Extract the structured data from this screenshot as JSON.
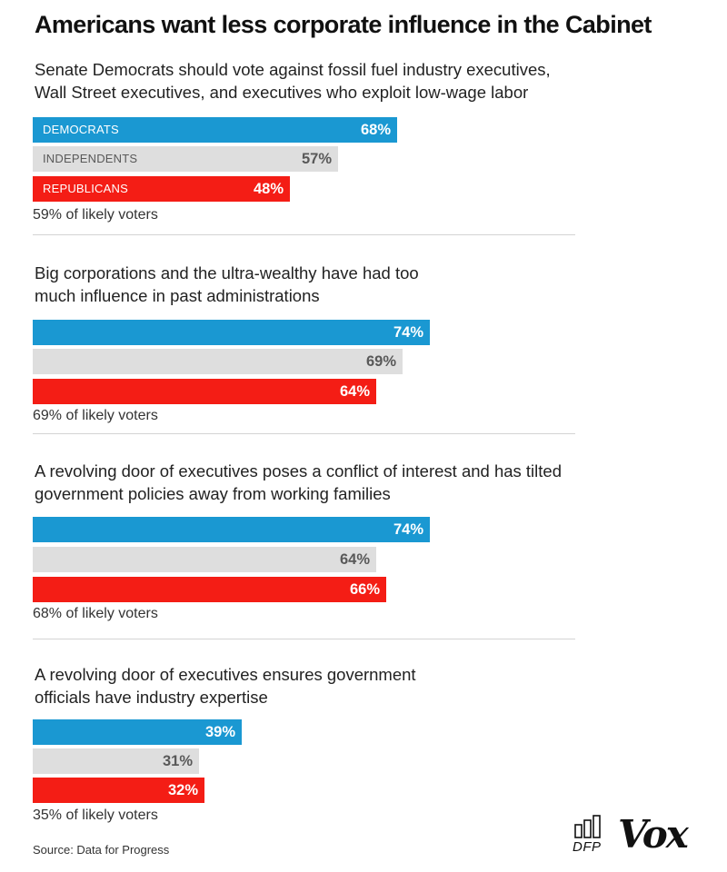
{
  "title": "Americans want less corporate influence in the Cabinet",
  "chart_data": {
    "type": "bar",
    "orientation": "horizontal",
    "xlim": [
      0,
      100
    ],
    "series_labels": {
      "democrats": "DEMOCRATS",
      "independents": "INDEPENDENTS",
      "republicans": "REPUBLICANS"
    },
    "colors": {
      "democrats": "#1a98d2",
      "independents": "#dedede",
      "republicans": "#f41d15"
    },
    "panels": [
      {
        "question": "Senate Democrats should vote against fossil fuel industry executives, Wall Street executives, and executives who exploit low-wage labor",
        "values": [
          68,
          57,
          48
        ],
        "value_labels": [
          "68%",
          "57%",
          "48%"
        ],
        "overall": "59% of likely voters"
      },
      {
        "question": "Big corporations and the ultra-wealthy have had too much influence in past administrations",
        "values": [
          74,
          69,
          64
        ],
        "value_labels": [
          "74%",
          "69%",
          "64%"
        ],
        "overall": "69% of likely voters"
      },
      {
        "question": "A revolving door of executives poses a conflict of interest and has tilted government policies away from working families",
        "values": [
          74,
          64,
          66
        ],
        "value_labels": [
          "74%",
          "64%",
          "66%"
        ],
        "overall": "68% of likely voters"
      },
      {
        "question": "A revolving door of executives ensures government officials have industry expertise",
        "values": [
          39,
          31,
          32
        ],
        "value_labels": [
          "39%",
          "31%",
          "32%"
        ],
        "overall": "35% of likely voters"
      }
    ]
  },
  "source": "Source: Data for Progress",
  "logos": {
    "dfp": "DFP",
    "vox": "Vox"
  }
}
